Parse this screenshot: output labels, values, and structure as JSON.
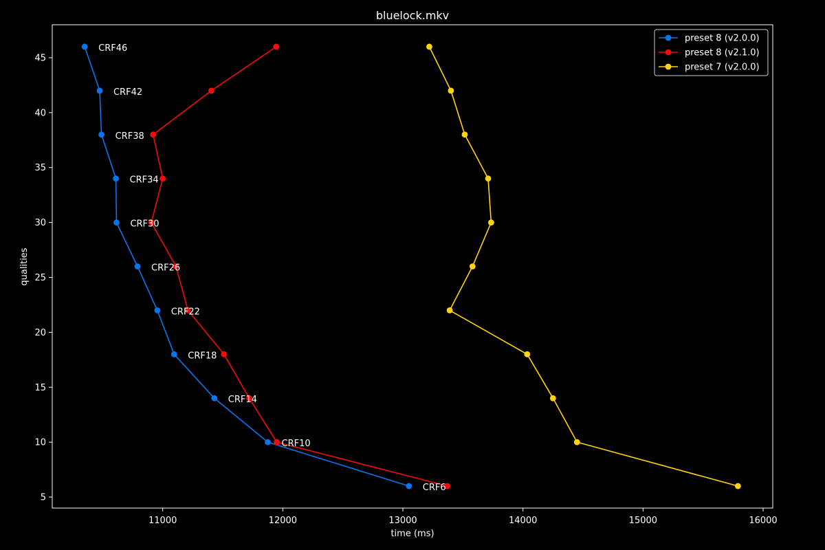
{
  "chart_data": {
    "type": "line",
    "title": "bluelock.mkv",
    "xlabel": "time (ms)",
    "ylabel": "qualities",
    "xlim": [
      10080,
      16080
    ],
    "ylim": [
      4,
      48
    ],
    "xticks": [
      11000,
      12000,
      13000,
      14000,
      15000,
      16000
    ],
    "yticks": [
      5,
      10,
      15,
      20,
      25,
      30,
      35,
      40,
      45
    ],
    "grid": false,
    "legend_position": "top-right",
    "point_labels": [
      {
        "text": "CRF46",
        "x": 10350,
        "y": 46
      },
      {
        "text": "CRF42",
        "x": 10475,
        "y": 42
      },
      {
        "text": "CRF38",
        "x": 10490,
        "y": 38
      },
      {
        "text": "CRF34",
        "x": 10610,
        "y": 34
      },
      {
        "text": "CRF30",
        "x": 10615,
        "y": 30
      },
      {
        "text": "CRF26",
        "x": 10790,
        "y": 26
      },
      {
        "text": "CRF22",
        "x": 10955,
        "y": 22
      },
      {
        "text": "CRF18",
        "x": 11095,
        "y": 18
      },
      {
        "text": "CRF14",
        "x": 11430,
        "y": 14
      },
      {
        "text": "CRF10",
        "x": 11875,
        "y": 10
      },
      {
        "text": "CRF6",
        "x": 13050,
        "y": 6
      }
    ],
    "series": [
      {
        "name": "preset 8 (v2.0.0)",
        "color": "#0a74ea",
        "points": [
          [
            10350,
            46
          ],
          [
            10475,
            42
          ],
          [
            10490,
            38
          ],
          [
            10610,
            34
          ],
          [
            10615,
            30
          ],
          [
            10790,
            26
          ],
          [
            10955,
            22
          ],
          [
            11095,
            18
          ],
          [
            11430,
            14
          ],
          [
            11875,
            10
          ],
          [
            13050,
            6
          ]
        ]
      },
      {
        "name": "preset 8 (v2.1.0)",
        "color": "#f20c0c",
        "points": [
          [
            11945,
            46
          ],
          [
            11405,
            42
          ],
          [
            10920,
            38
          ],
          [
            11000,
            34
          ],
          [
            10905,
            30
          ],
          [
            11110,
            26
          ],
          [
            11210,
            22
          ],
          [
            11510,
            18
          ],
          [
            11720,
            14
          ],
          [
            11950,
            10
          ],
          [
            13370,
            6
          ]
        ]
      },
      {
        "name": "preset 7 (v2.0.0)",
        "color": "#ffd214",
        "points": [
          [
            13220,
            46
          ],
          [
            13400,
            42
          ],
          [
            13515,
            38
          ],
          [
            13710,
            34
          ],
          [
            13735,
            30
          ],
          [
            13580,
            26
          ],
          [
            13390,
            22
          ],
          [
            14035,
            18
          ],
          [
            14250,
            14
          ],
          [
            14450,
            10
          ],
          [
            15790,
            6
          ]
        ]
      }
    ]
  }
}
